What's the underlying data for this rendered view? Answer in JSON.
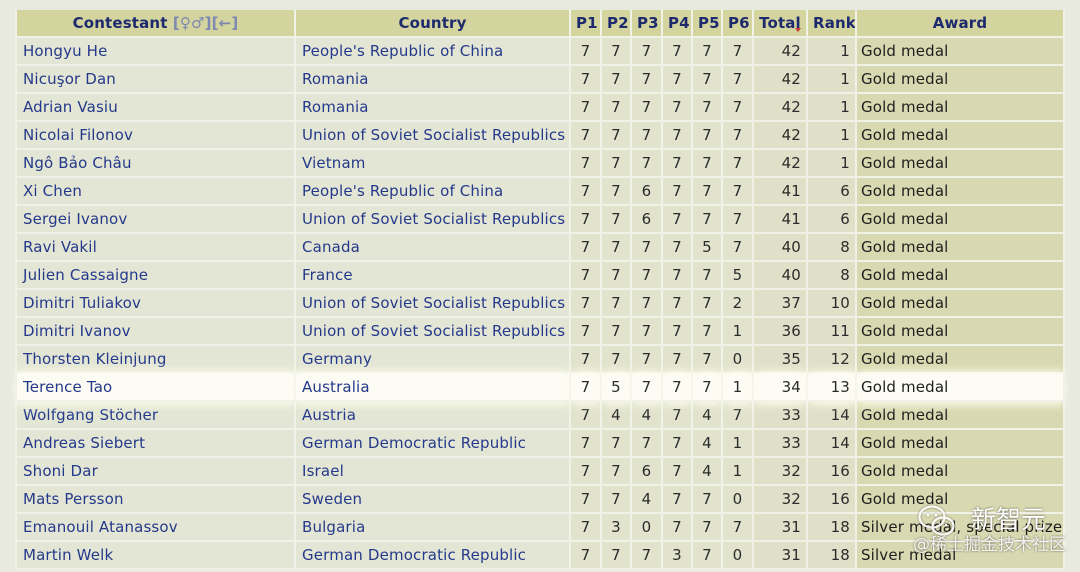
{
  "table": {
    "headers": {
      "contestant": "Contestant",
      "gender_link": "[♀♂]",
      "back_link": "[←]",
      "country": "Country",
      "problems": [
        "P1",
        "P2",
        "P3",
        "P4",
        "P5",
        "P6"
      ],
      "total": "Total",
      "rank": "Rank",
      "award": "Award"
    },
    "sorted_by": "Total",
    "rows": [
      {
        "contestant": "Hongyu He",
        "country": "People's Republic of China",
        "scores": [
          7,
          7,
          7,
          7,
          7,
          7
        ],
        "total": 42,
        "rank": 1,
        "award": "Gold medal"
      },
      {
        "contestant": "Nicuşor Dan",
        "country": "Romania",
        "scores": [
          7,
          7,
          7,
          7,
          7,
          7
        ],
        "total": 42,
        "rank": 1,
        "award": "Gold medal"
      },
      {
        "contestant": "Adrian Vasiu",
        "country": "Romania",
        "scores": [
          7,
          7,
          7,
          7,
          7,
          7
        ],
        "total": 42,
        "rank": 1,
        "award": "Gold medal"
      },
      {
        "contestant": "Nicolai Filonov",
        "country": "Union of Soviet Socialist Republics",
        "scores": [
          7,
          7,
          7,
          7,
          7,
          7
        ],
        "total": 42,
        "rank": 1,
        "award": "Gold medal"
      },
      {
        "contestant": "Ngô Bảo Châu",
        "country": "Vietnam",
        "scores": [
          7,
          7,
          7,
          7,
          7,
          7
        ],
        "total": 42,
        "rank": 1,
        "award": "Gold medal"
      },
      {
        "contestant": "Xi Chen",
        "country": "People's Republic of China",
        "scores": [
          7,
          7,
          6,
          7,
          7,
          7
        ],
        "total": 41,
        "rank": 6,
        "award": "Gold medal"
      },
      {
        "contestant": "Sergei Ivanov",
        "country": "Union of Soviet Socialist Republics",
        "scores": [
          7,
          7,
          6,
          7,
          7,
          7
        ],
        "total": 41,
        "rank": 6,
        "award": "Gold medal"
      },
      {
        "contestant": "Ravi Vakil",
        "country": "Canada",
        "scores": [
          7,
          7,
          7,
          7,
          5,
          7
        ],
        "total": 40,
        "rank": 8,
        "award": "Gold medal"
      },
      {
        "contestant": "Julien Cassaigne",
        "country": "France",
        "scores": [
          7,
          7,
          7,
          7,
          7,
          5
        ],
        "total": 40,
        "rank": 8,
        "award": "Gold medal"
      },
      {
        "contestant": "Dimitri Tuliakov",
        "country": "Union of Soviet Socialist Republics",
        "scores": [
          7,
          7,
          7,
          7,
          7,
          2
        ],
        "total": 37,
        "rank": 10,
        "award": "Gold medal"
      },
      {
        "contestant": "Dimitri Ivanov",
        "country": "Union of Soviet Socialist Republics",
        "scores": [
          7,
          7,
          7,
          7,
          7,
          1
        ],
        "total": 36,
        "rank": 11,
        "award": "Gold medal"
      },
      {
        "contestant": "Thorsten Kleinjung",
        "country": "Germany",
        "scores": [
          7,
          7,
          7,
          7,
          7,
          0
        ],
        "total": 35,
        "rank": 12,
        "award": "Gold medal"
      },
      {
        "contestant": "Terence Tao",
        "country": "Australia",
        "scores": [
          7,
          5,
          7,
          7,
          7,
          1
        ],
        "total": 34,
        "rank": 13,
        "award": "Gold medal",
        "highlighted": true
      },
      {
        "contestant": "Wolfgang Stöcher",
        "country": "Austria",
        "scores": [
          7,
          4,
          4,
          7,
          4,
          7
        ],
        "total": 33,
        "rank": 14,
        "award": "Gold medal"
      },
      {
        "contestant": "Andreas Siebert",
        "country": "German Democratic Republic",
        "scores": [
          7,
          7,
          7,
          7,
          4,
          1
        ],
        "total": 33,
        "rank": 14,
        "award": "Gold medal"
      },
      {
        "contestant": "Shoni Dar",
        "country": "Israel",
        "scores": [
          7,
          7,
          6,
          7,
          4,
          1
        ],
        "total": 32,
        "rank": 16,
        "award": "Gold medal"
      },
      {
        "contestant": "Mats Persson",
        "country": "Sweden",
        "scores": [
          7,
          7,
          4,
          7,
          7,
          0
        ],
        "total": 32,
        "rank": 16,
        "award": "Gold medal"
      },
      {
        "contestant": "Emanouil Atanassov",
        "country": "Bulgaria",
        "scores": [
          7,
          3,
          0,
          7,
          7,
          7
        ],
        "total": 31,
        "rank": 18,
        "award": "Silver medal, special prize"
      },
      {
        "contestant": "Martin Welk",
        "country": "German Democratic Republic",
        "scores": [
          7,
          7,
          7,
          3,
          7,
          0
        ],
        "total": 31,
        "rank": 18,
        "award": "Silver medal"
      }
    ]
  },
  "colors": {
    "link": "#24398a",
    "header_bg": "#d4d49f",
    "header_text": "#1d2a6d",
    "highlight_row": "#fcfcf4",
    "sort_indicator": "#d0392b",
    "award_bg": "#d8d9b1"
  },
  "watermark": {
    "logo_icon": "wechat-logo-icon",
    "brand": "新智元",
    "source": "@稀土掘金技术社区"
  }
}
